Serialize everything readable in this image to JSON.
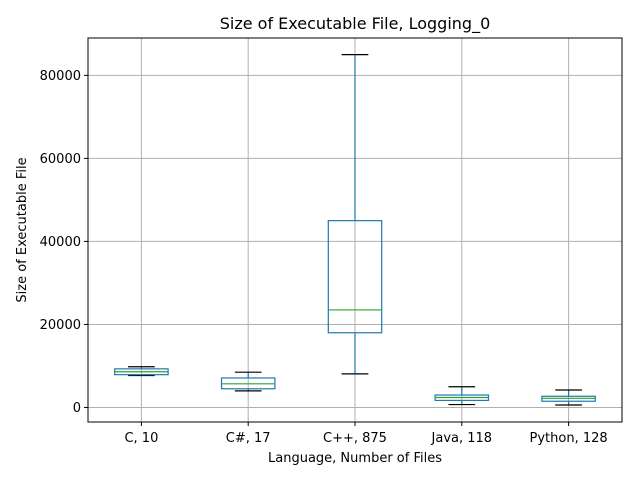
{
  "chart_data": {
    "type": "box",
    "title": "Size of Executable File, Logging_0",
    "xlabel": "Language, Number of Files",
    "ylabel": "Size of Executable File",
    "ylim": [
      -3500,
      89000
    ],
    "yticks": [
      0,
      20000,
      40000,
      60000,
      80000
    ],
    "grid": true,
    "colors": {
      "box": "#1f77b4",
      "median": "#2ca02c",
      "whisker_cap": "#000000",
      "grid": "#b0b0b0"
    },
    "categories": [
      "C, 10",
      "C#, 17",
      "C++, 875",
      "Java, 118",
      "Python, 128"
    ],
    "boxes": [
      {
        "whisker_low": 7700,
        "q1": 7900,
        "median": 8600,
        "q3": 9300,
        "whisker_high": 9800
      },
      {
        "whisker_low": 4000,
        "q1": 4500,
        "median": 5700,
        "q3": 7100,
        "whisker_high": 8500
      },
      {
        "whisker_low": 8100,
        "q1": 18000,
        "median": 23500,
        "q3": 45000,
        "whisker_high": 85000
      },
      {
        "whisker_low": 700,
        "q1": 1700,
        "median": 2400,
        "q3": 3000,
        "whisker_high": 5000
      },
      {
        "whisker_low": 600,
        "q1": 1500,
        "median": 2200,
        "q3": 2700,
        "whisker_high": 4200
      }
    ]
  }
}
